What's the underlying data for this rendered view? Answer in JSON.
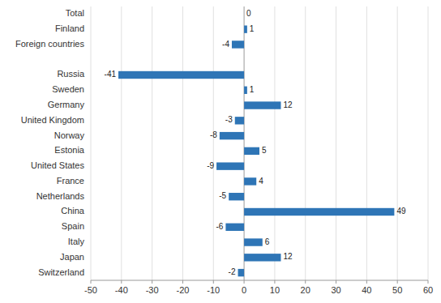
{
  "chart_data": {
    "type": "bar",
    "orientation": "horizontal",
    "categories": [
      "Total",
      "Finland",
      "Foreign countries",
      null,
      "Russia",
      "Sweden",
      "Germany",
      "United Kingdom",
      "Norway",
      "Estonia",
      "United States",
      "France",
      "Netherlands",
      "China",
      "Spain",
      "Italy",
      "Japan",
      "Switzerland"
    ],
    "values": [
      0,
      1,
      -4,
      null,
      -41,
      1,
      12,
      -3,
      -8,
      5,
      -9,
      4,
      -5,
      49,
      -6,
      6,
      12,
      -2
    ],
    "color": "#2E75B6",
    "xlim": [
      -50,
      60
    ],
    "xticks": [
      -50,
      -40,
      -30,
      -20,
      -10,
      0,
      10,
      20,
      30,
      40,
      50,
      60
    ],
    "grid": true,
    "data_labels": true
  }
}
